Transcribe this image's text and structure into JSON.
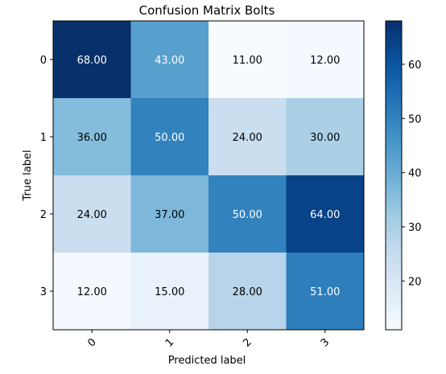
{
  "chart_data": {
    "type": "heatmap",
    "title": "Confusion Matrix Bolts",
    "xlabel": "Predicted label",
    "ylabel": "True label",
    "x_tick_labels": [
      "0",
      "1",
      "2",
      "3"
    ],
    "y_tick_labels": [
      "0",
      "1",
      "2",
      "3"
    ],
    "values": [
      [
        68,
        43,
        11,
        12
      ],
      [
        36,
        50,
        24,
        30
      ],
      [
        24,
        37,
        50,
        64
      ],
      [
        12,
        15,
        28,
        51
      ]
    ],
    "cell_labels": [
      [
        "68.00",
        "43.00",
        "11.00",
        "12.00"
      ],
      [
        "36.00",
        "50.00",
        "24.00",
        "30.00"
      ],
      [
        "24.00",
        "37.00",
        "50.00",
        "64.00"
      ],
      [
        "12.00",
        "15.00",
        "28.00",
        "51.00"
      ]
    ],
    "colorbar": {
      "range": [
        11,
        68
      ],
      "tick_labels": [
        "20",
        "30",
        "40",
        "50",
        "60"
      ],
      "ticks": [
        20,
        30,
        40,
        50,
        60
      ]
    },
    "colormap": "Blues",
    "colormap_stops": [
      "#f7fbff",
      "#deebf7",
      "#c6dbef",
      "#9ecae1",
      "#6baed6",
      "#4292c6",
      "#2171b5",
      "#08519c",
      "#08306b"
    ]
  }
}
